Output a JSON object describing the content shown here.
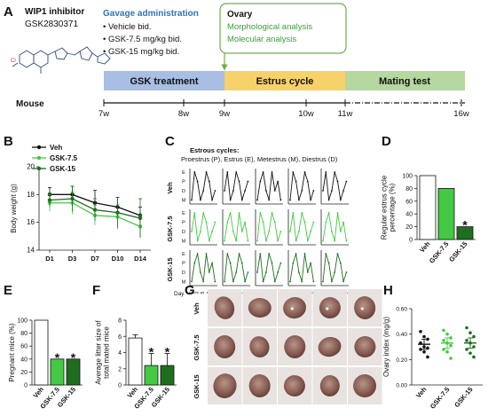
{
  "panels": {
    "A": "A",
    "B": "B",
    "C": "C",
    "D": "D",
    "E": "E",
    "F": "F",
    "G": "G",
    "H": "H"
  },
  "panel_a": {
    "inhibitor_title": "WIP1 inhibitor",
    "inhibitor_name": "GSK2830371",
    "gavage_title": "Gavage administration",
    "gavage_items": [
      "Vehicle  bid.",
      "GSK-7.5 mg/kg bid.",
      "GSK-15 mg/kg  bid."
    ],
    "ovary_title": "Ovary",
    "ovary_items": [
      "Morphological analysis",
      "Molecular analysis"
    ],
    "phases": [
      "GSK treatment",
      "Estrus cycle",
      "Mating test"
    ],
    "mouse_label": "Mouse",
    "timeline_ticks": [
      "7w",
      "8w",
      "9w",
      "10w",
      "11w",
      "16w"
    ],
    "colors": {
      "gsk": "#a8bfe3",
      "estrus": "#f7d26a",
      "mating": "#b5d7a0",
      "ovary_border": "#6fae4a"
    }
  },
  "chart_data": [
    {
      "id": "B",
      "type": "line",
      "ylabel": "Body weight (g)",
      "categories": [
        "D1",
        "D3",
        "D7",
        "D10",
        "D14"
      ],
      "ylim": [
        14,
        20
      ],
      "yticks": [
        "14",
        "16",
        "18",
        "20"
      ],
      "series": [
        {
          "name": "Veh",
          "color": "#111111",
          "values": [
            18.0,
            18.0,
            17.4,
            17.1,
            16.5
          ],
          "err": [
            0.5,
            0.6,
            0.9,
            0.7,
            0.6
          ]
        },
        {
          "name": "GSK-7.5",
          "color": "#44c944",
          "values": [
            17.4,
            17.4,
            16.5,
            16.4,
            15.7
          ],
          "err": [
            0.6,
            0.8,
            0.7,
            0.9,
            0.8
          ]
        },
        {
          "name": "GSK-15",
          "color": "#1f6d1f",
          "values": [
            17.6,
            17.7,
            16.9,
            16.7,
            16.3
          ],
          "err": [
            0.5,
            0.9,
            0.8,
            1.1,
            1.4
          ]
        }
      ]
    },
    {
      "id": "D",
      "type": "bar",
      "ylabel": "Regular estrus cycle percentage (%)",
      "categories": [
        "Veh",
        "GSK-7.5",
        "GSK-15"
      ],
      "values": [
        100,
        80,
        20
      ],
      "colors": [
        "#ffffff",
        "#44c944",
        "#1f6d1f"
      ],
      "ylim": [
        0,
        100
      ],
      "yticks": [
        "0",
        "20",
        "40",
        "60",
        "80",
        "100"
      ],
      "sig": [
        "",
        "",
        "*"
      ]
    },
    {
      "id": "E",
      "type": "bar",
      "ylabel": "Pregnant mice (%)",
      "categories": [
        "Veh",
        "GSK-7.5",
        "GSK-15"
      ],
      "values": [
        100,
        40,
        40
      ],
      "colors": [
        "#ffffff",
        "#44c944",
        "#1f6d1f"
      ],
      "ylim": [
        0,
        100
      ],
      "yticks": [
        "0",
        "20",
        "40",
        "60",
        "80",
        "100"
      ],
      "sig": [
        "",
        "*",
        "*"
      ]
    },
    {
      "id": "F",
      "type": "bar",
      "ylabel": "Average litter size of total mated mice",
      "categories": [
        "Veh",
        "GSK-7.5",
        "GSK-15"
      ],
      "values": [
        5.8,
        2.4,
        2.4
      ],
      "err": [
        0.4,
        1.5,
        1.5
      ],
      "colors": [
        "#ffffff",
        "#44c944",
        "#1f6d1f"
      ],
      "ylim": [
        0,
        8
      ],
      "yticks": [
        "0",
        "2",
        "4",
        "6",
        "8"
      ],
      "sig": [
        "",
        "*",
        "*"
      ]
    },
    {
      "id": "H",
      "type": "scatter",
      "ylabel": "Ovary index (mg/g)",
      "categories": [
        "Veh",
        "GSK-7.5",
        "GSK-15"
      ],
      "colors": [
        "#111111",
        "#44c944",
        "#1f6d1f"
      ],
      "ylim": [
        0,
        0.6
      ],
      "yticks": [
        "0.00",
        "0.20",
        "0.40",
        "0.60"
      ],
      "points": [
        [
          0.42,
          0.38,
          0.36,
          0.33,
          0.3,
          0.29,
          0.28,
          0.26,
          0.22
        ],
        [
          0.43,
          0.4,
          0.37,
          0.35,
          0.33,
          0.31,
          0.28,
          0.26,
          0.21
        ],
        [
          0.45,
          0.41,
          0.38,
          0.35,
          0.33,
          0.3,
          0.28,
          0.25,
          0.22
        ]
      ],
      "means": [
        0.32,
        0.33,
        0.33
      ]
    }
  ],
  "panel_c": {
    "title": "Estrous cycles:",
    "phases_text": "Proestrus (P),  Estrus (E),  Metestrus (M),  Diestrus (D)",
    "groups": [
      "Veh",
      "GSK-7.5",
      "GSK-15"
    ],
    "stage_labels": [
      "E",
      "P",
      "D",
      "M"
    ],
    "day_label": "Day",
    "day_ticks": [
      "1",
      "3",
      "5",
      "7",
      "9"
    ],
    "colors": [
      "#111111",
      "#44c944",
      "#1f6d1f"
    ]
  },
  "panel_g": {
    "groups": [
      "Veh",
      "GSK-7.5",
      "GSK-15"
    ]
  }
}
